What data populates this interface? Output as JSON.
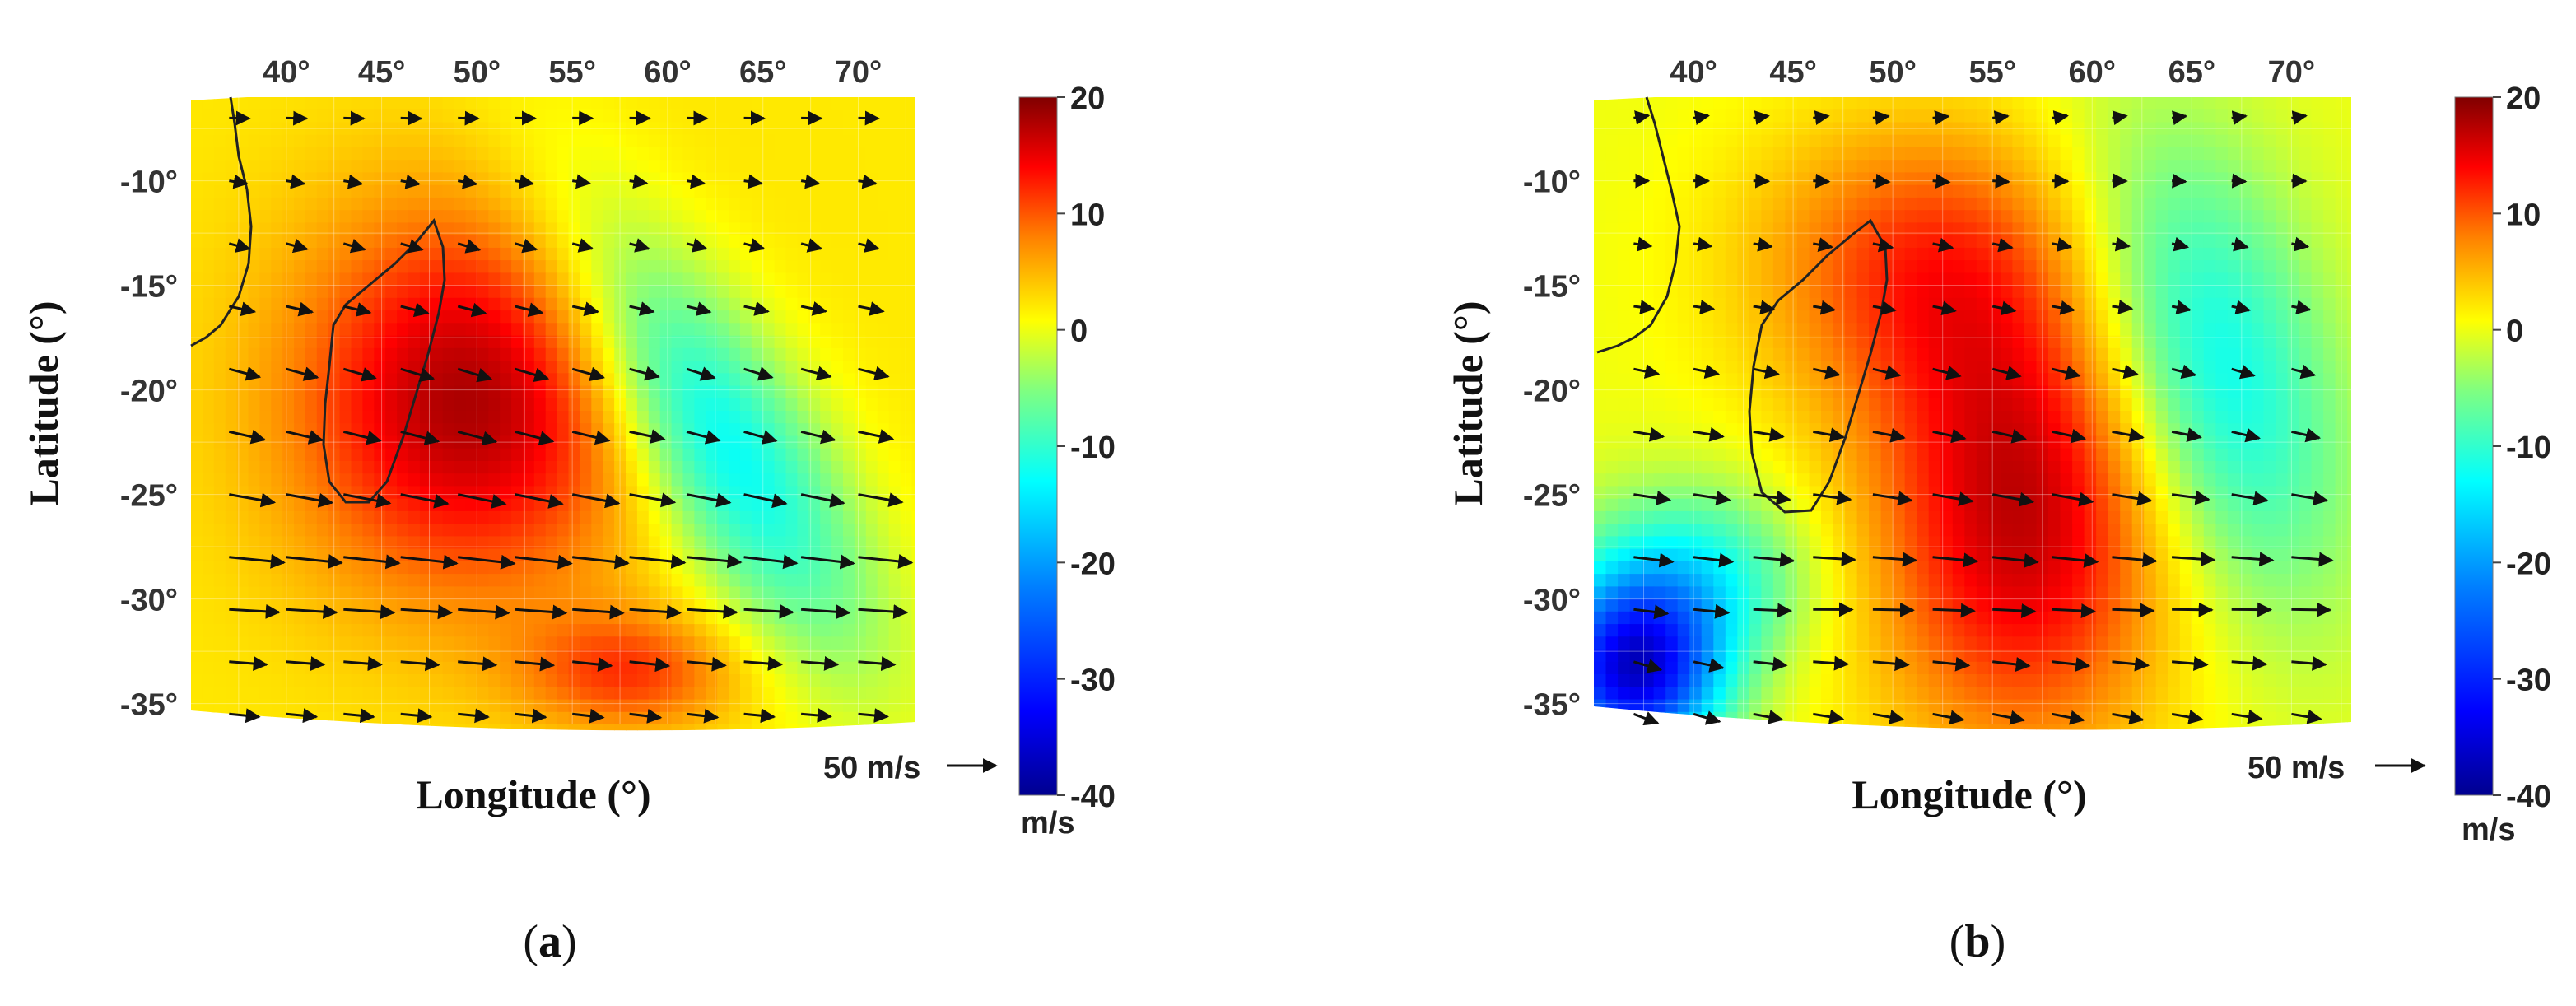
{
  "colormap": {
    "name": "jet",
    "stops": [
      "#00008f",
      "#0000ff",
      "#0080ff",
      "#00ffff",
      "#80ff80",
      "#ffff00",
      "#ff8000",
      "#ff0000",
      "#800000"
    ]
  },
  "chart_data": [
    {
      "type": "heatmap",
      "panel_label": "a",
      "xlabel": "Longitude (°)",
      "ylabel": "Latitude (°)",
      "xlim": [
        35,
        73
      ],
      "ylim": [
        -36,
        -6
      ],
      "x_ticks": [
        {
          "v": 40,
          "t": "40"
        },
        {
          "v": 45,
          "t": "45"
        },
        {
          "v": 50,
          "t": "50"
        },
        {
          "v": 55,
          "t": "55"
        },
        {
          "v": 60,
          "t": "60"
        },
        {
          "v": 65,
          "t": "65"
        },
        {
          "v": 70,
          "t": "70"
        }
      ],
      "y_ticks": [
        {
          "v": -10,
          "t": "-10"
        },
        {
          "v": -15,
          "t": "-15"
        },
        {
          "v": -20,
          "t": "-20"
        },
        {
          "v": -25,
          "t": "-25"
        },
        {
          "v": -30,
          "t": "-30"
        },
        {
          "v": -35,
          "t": "-35"
        }
      ],
      "colorbar": {
        "ticks": [
          "20",
          "10",
          "0",
          "-10",
          "-20",
          "-30",
          "-40"
        ],
        "range": [
          -40,
          20
        ],
        "unit": "m/s"
      },
      "reference_vector": {
        "label": "50 m/s",
        "magnitude": 50
      },
      "field_features": [
        {
          "lon": 49.5,
          "lat": -20.5,
          "value": 16,
          "sx": 6.5,
          "sy": 6.5
        },
        {
          "lon": 62.5,
          "lat": -22,
          "value": -16,
          "sx": 3.2,
          "sy": 9,
          "rot": -0.6
        },
        {
          "lon": 58,
          "lat": -33.5,
          "value": 9,
          "sx": 4,
          "sy": 2
        }
      ],
      "field_base": 2,
      "wind_vectors": [
        {
          "lat": -7,
          "u": 8,
          "v": 0
        },
        {
          "lat": -10,
          "u": 7,
          "v": -1
        },
        {
          "lat": -13,
          "u": 8,
          "v": -2
        },
        {
          "lat": -16,
          "u": 10,
          "v": -2
        },
        {
          "lat": -19,
          "u": 12,
          "v": -3
        },
        {
          "lat": -22,
          "u": 14,
          "v": -3
        },
        {
          "lat": -25,
          "u": 18,
          "v": -3
        },
        {
          "lat": -28,
          "u": 22,
          "v": -2
        },
        {
          "lat": -30.5,
          "u": 20,
          "v": -1
        },
        {
          "lat": -33,
          "u": 15,
          "v": -1
        },
        {
          "lat": -35.5,
          "u": 12,
          "v": -1
        }
      ],
      "coastline_note": "Africa and Madagascar outlines"
    },
    {
      "type": "heatmap",
      "panel_label": "b",
      "xlabel": "Longitude (°)",
      "ylabel": "Latitude (°)",
      "xlim": [
        35,
        73
      ],
      "ylim": [
        -36,
        -6
      ],
      "x_ticks": [
        {
          "v": 40,
          "t": "40"
        },
        {
          "v": 45,
          "t": "45"
        },
        {
          "v": 50,
          "t": "50"
        },
        {
          "v": 55,
          "t": "55"
        },
        {
          "v": 60,
          "t": "60"
        },
        {
          "v": 65,
          "t": "65"
        },
        {
          "v": 70,
          "t": "70"
        }
      ],
      "y_ticks": [
        {
          "v": -10,
          "t": "-10"
        },
        {
          "v": -15,
          "t": "-15"
        },
        {
          "v": -20,
          "t": "-20"
        },
        {
          "v": -25,
          "t": "-25"
        },
        {
          "v": -30,
          "t": "-30"
        },
        {
          "v": -35,
          "t": "-35"
        }
      ],
      "colorbar": {
        "ticks": [
          "20",
          "10",
          "0",
          "-10",
          "-20",
          "-30",
          "-40"
        ],
        "range": [
          -40,
          20
        ],
        "unit": "m/s"
      },
      "reference_vector": {
        "label": "50 m/s",
        "magnitude": 50
      },
      "field_features": [
        {
          "lon": 56.5,
          "lat": -26,
          "value": 17,
          "sx": 5.5,
          "sy": 8
        },
        {
          "lon": 51,
          "lat": -14,
          "value": 10,
          "sx": 6,
          "sy": 5
        },
        {
          "lon": 66,
          "lat": -19,
          "value": -14,
          "sx": 4,
          "sy": 8,
          "rot": -0.3
        },
        {
          "lon": 37,
          "lat": -33.5,
          "value": -34,
          "sx": 3,
          "sy": 3
        },
        {
          "lon": 40,
          "lat": -29,
          "value": -12,
          "sx": 4,
          "sy": 3
        }
      ],
      "field_base": 0,
      "wind_vectors": [
        {
          "lat": -7,
          "u": 6,
          "v": 1
        },
        {
          "lat": -10,
          "u": 6,
          "v": 0
        },
        {
          "lat": -13,
          "u": 7,
          "v": -1
        },
        {
          "lat": -16,
          "u": 8,
          "v": -1
        },
        {
          "lat": -19,
          "u": 10,
          "v": -2
        },
        {
          "lat": -22,
          "u": 12,
          "v": -2
        },
        {
          "lat": -25,
          "u": 15,
          "v": -2
        },
        {
          "lat": -28,
          "u": 17,
          "v": -1
        },
        {
          "lat": -30.5,
          "u": 16,
          "v": 0
        },
        {
          "lat": -33,
          "u": 14,
          "v": -1
        },
        {
          "lat": -35.5,
          "u": 12,
          "v": -2
        }
      ],
      "coastline_note": "Africa and Madagascar outlines"
    }
  ]
}
